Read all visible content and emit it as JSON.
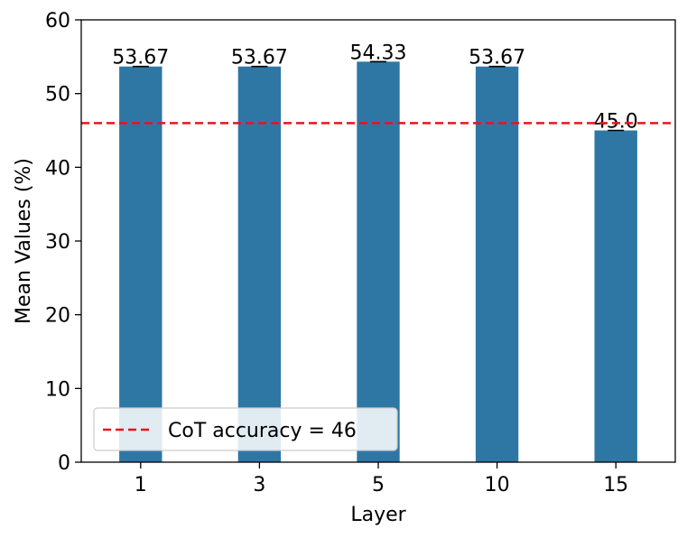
{
  "chart_data": {
    "type": "bar",
    "categories": [
      "1",
      "3",
      "5",
      "10",
      "15"
    ],
    "values": [
      53.67,
      53.67,
      54.33,
      53.67,
      45.0
    ],
    "value_labels": [
      "53.67",
      "53.67",
      "54.33",
      "53.67",
      "45.0"
    ],
    "xlabel": "Layer",
    "ylabel": "Mean Values (%)",
    "ylim": [
      0,
      60
    ],
    "yticks": [
      0,
      10,
      20,
      30,
      40,
      50,
      60
    ],
    "ytick_labels": [
      "0",
      "10",
      "20",
      "30",
      "40",
      "50",
      "60"
    ],
    "bar_color": "#2e77a5",
    "error_bars": true,
    "reference_line": {
      "value": 46,
      "style": "dashed",
      "color": "#e8141c"
    },
    "legend": {
      "placement": "lower-left",
      "entries": [
        "CoT accuracy = 46"
      ]
    },
    "grid": false
  }
}
